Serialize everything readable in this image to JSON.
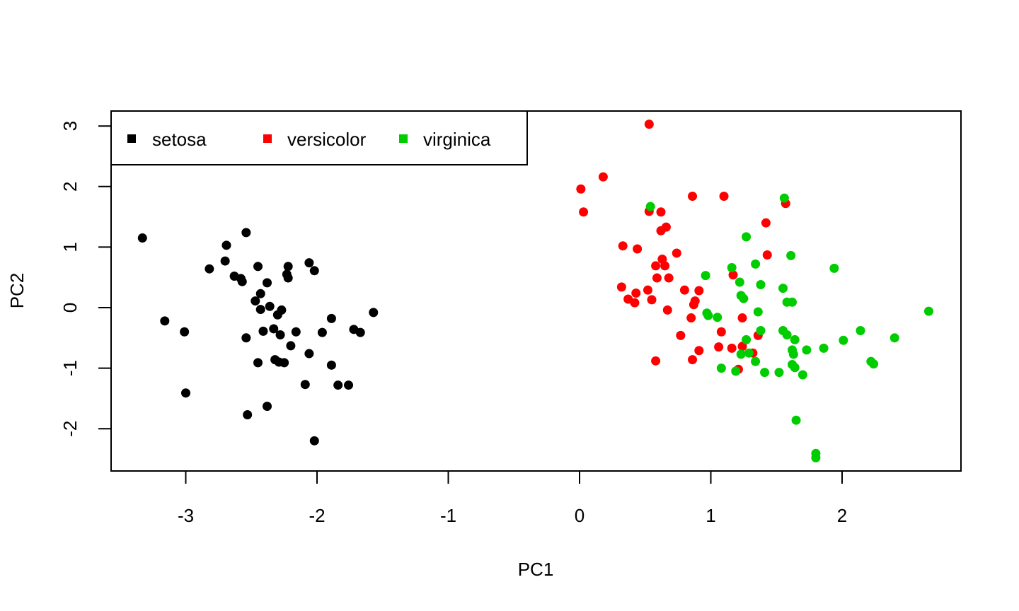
{
  "chart_data": {
    "type": "scatter",
    "title": "",
    "xlabel": "PC1",
    "ylabel": "PC2",
    "xlim": [
      -3.55,
      2.9
    ],
    "ylim": [
      -2.7,
      3.25
    ],
    "x_ticks": [
      -3,
      -2,
      -1,
      0,
      1,
      2
    ],
    "y_ticks": [
      -2,
      -1,
      0,
      1,
      2,
      3
    ],
    "x_tick_labels": [
      "-3",
      "-2",
      "-1",
      "0",
      "1",
      "2"
    ],
    "y_tick_labels": [
      "-2",
      "-1",
      "0",
      "1",
      "2",
      "3"
    ],
    "grid": false,
    "legend_position": "top-left",
    "colors": {
      "setosa": "#000000",
      "versicolor": "#ff0000",
      "virginica": "#00cd00"
    },
    "series": [
      {
        "name": "setosa",
        "color": "#000000",
        "points": [
          [
            -3.33,
            1.15
          ],
          [
            -3.16,
            -0.22
          ],
          [
            -3.01,
            -0.4
          ],
          [
            -3.0,
            -1.41
          ],
          [
            -2.82,
            0.64
          ],
          [
            -2.69,
            1.03
          ],
          [
            -2.7,
            0.77
          ],
          [
            -2.63,
            0.52
          ],
          [
            -2.58,
            0.48
          ],
          [
            -2.57,
            0.43
          ],
          [
            -2.54,
            1.24
          ],
          [
            -2.54,
            -0.5
          ],
          [
            -2.53,
            -1.77
          ],
          [
            -2.47,
            0.11
          ],
          [
            -2.45,
            0.68
          ],
          [
            -2.45,
            -0.91
          ],
          [
            -2.43,
            0.23
          ],
          [
            -2.43,
            -0.03
          ],
          [
            -2.41,
            -0.39
          ],
          [
            -2.38,
            0.41
          ],
          [
            -2.38,
            -1.63
          ],
          [
            -2.36,
            0.02
          ],
          [
            -2.33,
            -0.35
          ],
          [
            -2.32,
            -0.86
          ],
          [
            -2.3,
            -0.12
          ],
          [
            -2.29,
            -0.9
          ],
          [
            -2.28,
            -0.45
          ],
          [
            -2.27,
            -0.04
          ],
          [
            -2.25,
            -0.91
          ],
          [
            -2.23,
            0.55
          ],
          [
            -2.22,
            0.68
          ],
          [
            -2.22,
            0.49
          ],
          [
            -2.2,
            -0.63
          ],
          [
            -2.16,
            -0.4
          ],
          [
            -2.09,
            -1.27
          ],
          [
            -2.06,
            0.74
          ],
          [
            -2.06,
            -0.76
          ],
          [
            -2.02,
            0.61
          ],
          [
            -2.02,
            -2.2
          ],
          [
            -1.96,
            -0.41
          ],
          [
            -1.89,
            -0.18
          ],
          [
            -1.89,
            -0.95
          ],
          [
            -1.84,
            -1.28
          ],
          [
            -1.76,
            -1.28
          ],
          [
            -1.72,
            -0.36
          ],
          [
            -1.67,
            -0.41
          ],
          [
            -1.57,
            -0.08
          ]
        ]
      },
      {
        "name": "versicolor",
        "color": "#ff0000",
        "points": [
          [
            0.53,
            3.03
          ],
          [
            0.01,
            1.96
          ],
          [
            0.18,
            2.16
          ],
          [
            0.03,
            1.58
          ],
          [
            0.86,
            1.84
          ],
          [
            1.1,
            1.84
          ],
          [
            0.53,
            1.59
          ],
          [
            0.62,
            1.58
          ],
          [
            1.57,
            1.72
          ],
          [
            1.42,
            1.4
          ],
          [
            0.66,
            1.33
          ],
          [
            0.62,
            1.27
          ],
          [
            0.33,
            1.02
          ],
          [
            0.44,
            0.97
          ],
          [
            0.74,
            0.9
          ],
          [
            0.63,
            0.8
          ],
          [
            1.43,
            0.87
          ],
          [
            0.65,
            0.69
          ],
          [
            0.58,
            0.69
          ],
          [
            0.59,
            0.49
          ],
          [
            0.68,
            0.49
          ],
          [
            1.17,
            0.54
          ],
          [
            0.32,
            0.34
          ],
          [
            0.52,
            0.29
          ],
          [
            0.43,
            0.24
          ],
          [
            0.8,
            0.29
          ],
          [
            0.91,
            0.28
          ],
          [
            0.37,
            0.14
          ],
          [
            0.42,
            0.08
          ],
          [
            0.55,
            0.13
          ],
          [
            0.88,
            0.11
          ],
          [
            0.87,
            0.05
          ],
          [
            0.67,
            -0.04
          ],
          [
            0.85,
            -0.17
          ],
          [
            1.24,
            -0.17
          ],
          [
            1.08,
            -0.4
          ],
          [
            0.77,
            -0.46
          ],
          [
            1.36,
            -0.46
          ],
          [
            1.24,
            -0.64
          ],
          [
            1.06,
            -0.65
          ],
          [
            1.16,
            -0.67
          ],
          [
            0.91,
            -0.71
          ],
          [
            1.32,
            -0.75
          ],
          [
            0.58,
            -0.88
          ],
          [
            0.86,
            -0.86
          ],
          [
            1.21,
            -1.02
          ]
        ]
      },
      {
        "name": "virginica",
        "color": "#00cd00",
        "points": [
          [
            0.54,
            1.67
          ],
          [
            1.56,
            1.81
          ],
          [
            1.27,
            1.17
          ],
          [
            1.34,
            0.72
          ],
          [
            1.16,
            0.66
          ],
          [
            1.61,
            0.86
          ],
          [
            1.94,
            0.65
          ],
          [
            0.96,
            0.53
          ],
          [
            1.22,
            0.42
          ],
          [
            1.38,
            0.38
          ],
          [
            1.55,
            0.32
          ],
          [
            1.23,
            0.2
          ],
          [
            1.25,
            0.15
          ],
          [
            1.58,
            0.09
          ],
          [
            1.62,
            0.09
          ],
          [
            0.97,
            -0.09
          ],
          [
            0.98,
            -0.13
          ],
          [
            1.05,
            -0.16
          ],
          [
            1.36,
            -0.07
          ],
          [
            2.66,
            -0.06
          ],
          [
            1.55,
            -0.38
          ],
          [
            1.38,
            -0.38
          ],
          [
            2.14,
            -0.38
          ],
          [
            1.58,
            -0.45
          ],
          [
            1.64,
            -0.53
          ],
          [
            1.27,
            -0.53
          ],
          [
            2.4,
            -0.5
          ],
          [
            2.01,
            -0.54
          ],
          [
            1.86,
            -0.67
          ],
          [
            1.73,
            -0.7
          ],
          [
            1.62,
            -0.7
          ],
          [
            1.63,
            -0.77
          ],
          [
            1.23,
            -0.77
          ],
          [
            1.29,
            -0.75
          ],
          [
            1.34,
            -0.89
          ],
          [
            2.22,
            -0.89
          ],
          [
            2.24,
            -0.93
          ],
          [
            1.62,
            -0.94
          ],
          [
            1.64,
            -0.99
          ],
          [
            1.08,
            -1.0
          ],
          [
            1.19,
            -1.05
          ],
          [
            1.41,
            -1.07
          ],
          [
            1.52,
            -1.07
          ],
          [
            1.7,
            -1.11
          ],
          [
            1.65,
            -1.86
          ],
          [
            1.8,
            -2.41
          ],
          [
            1.8,
            -2.48
          ]
        ]
      }
    ]
  }
}
